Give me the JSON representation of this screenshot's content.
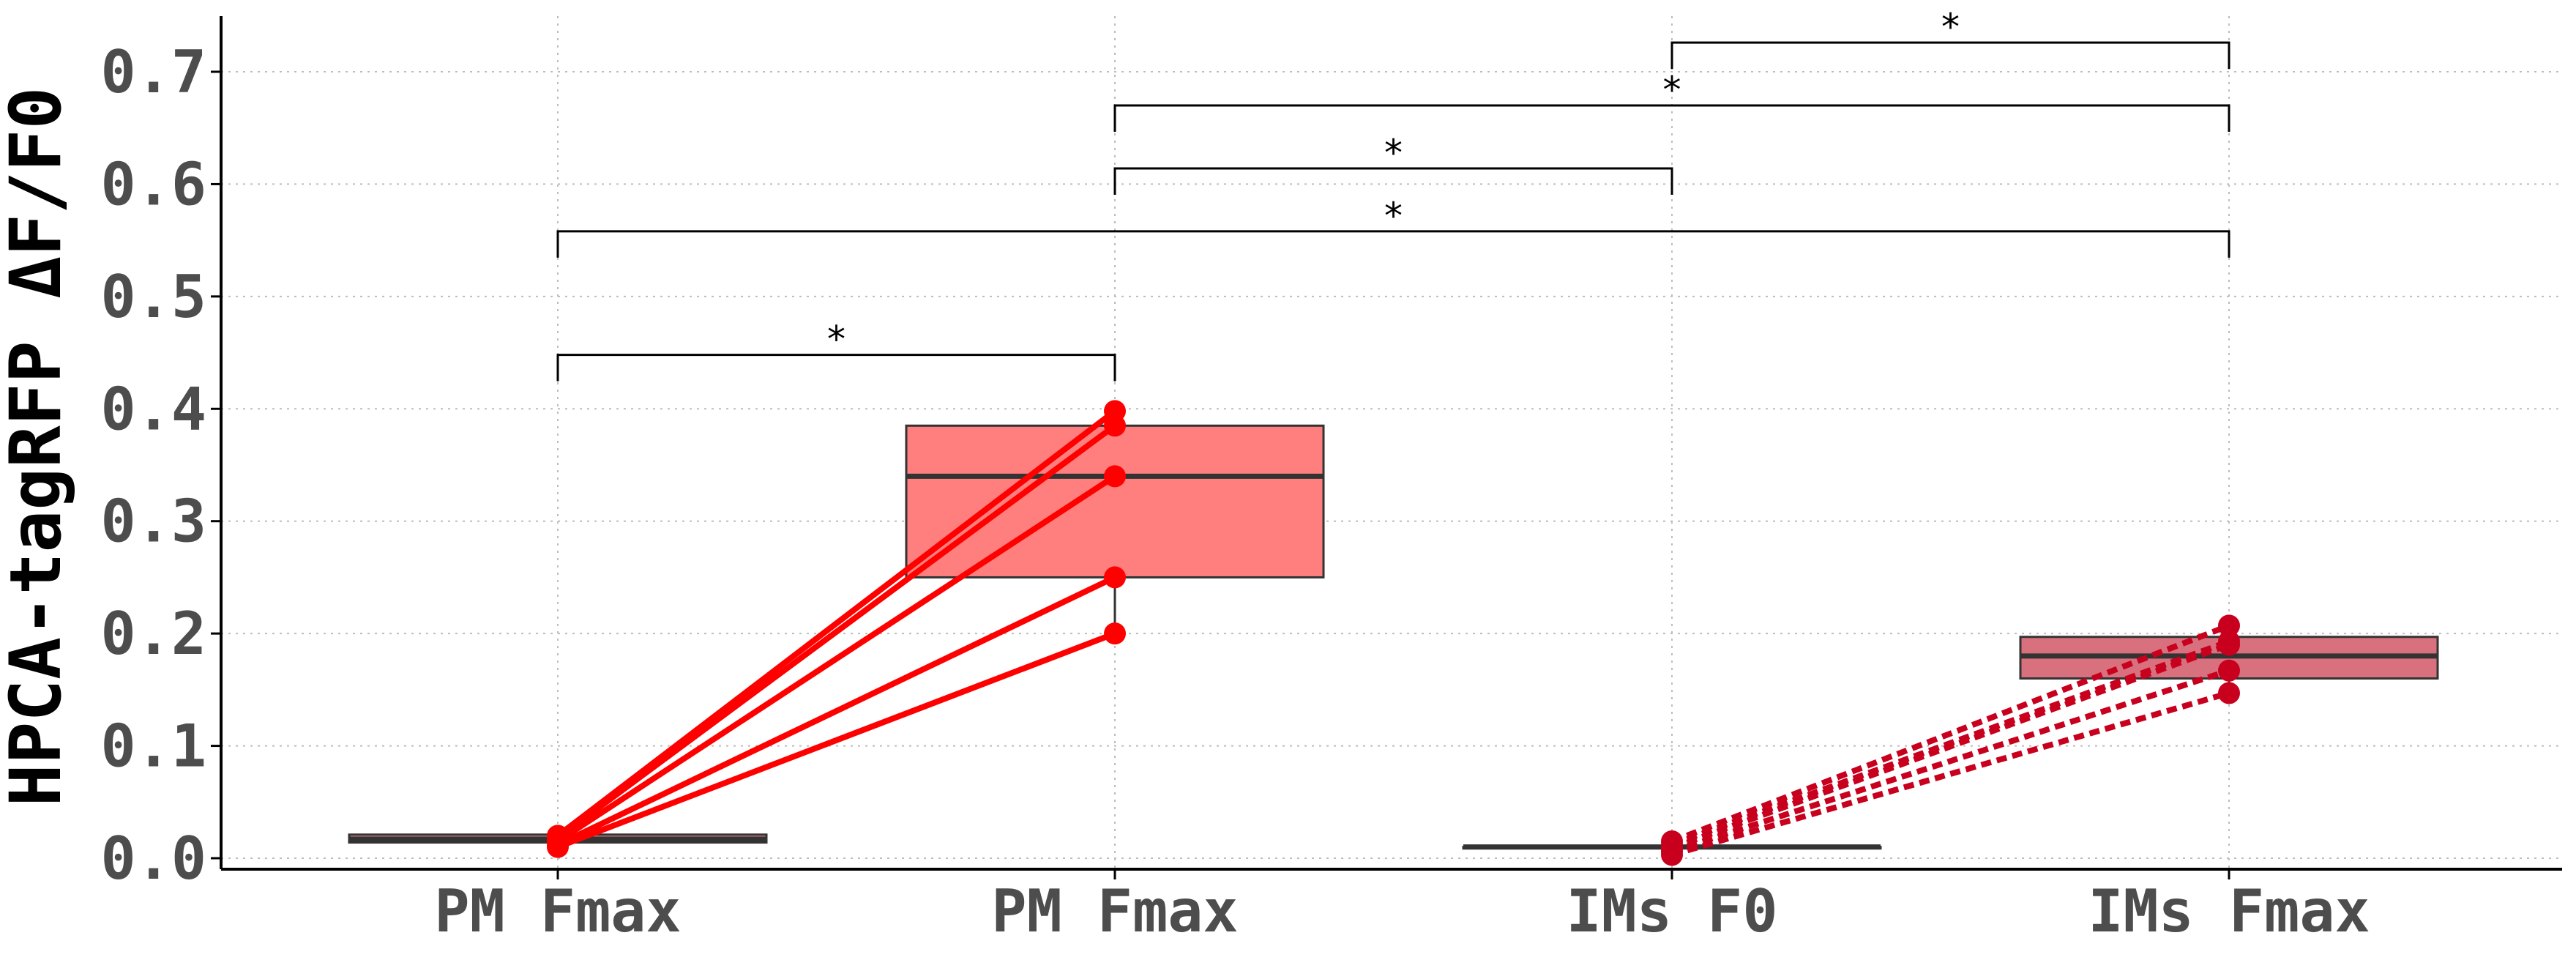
{
  "chart_data": {
    "type": "box",
    "title": "",
    "xlabel": "",
    "ylabel": "HPCA-tagRFP ΔF/F0",
    "categories": [
      "PM Fmax",
      "PM Fmax",
      "IMs F0",
      "IMs Fmax"
    ],
    "ylim": [
      -0.01,
      0.75
    ],
    "yticks": [
      "0.0",
      "0.1",
      "0.2",
      "0.3",
      "0.4",
      "0.5",
      "0.6",
      "0.7"
    ],
    "grid": true,
    "boxes": [
      {
        "category_index": 0,
        "q1": 0.014,
        "median": 0.017,
        "q3": 0.021,
        "whisker_low": 0.014,
        "whisker_high": 0.021,
        "fill": "#f4898b"
      },
      {
        "category_index": 1,
        "q1": 0.25,
        "median": 0.34,
        "q3": 0.385,
        "whisker_low": 0.2,
        "whisker_high": 0.398,
        "fill": "#ff7f7f"
      },
      {
        "category_index": 2,
        "q1": 0.01,
        "median": 0.01,
        "q3": 0.01,
        "whisker_low": 0.01,
        "whisker_high": 0.01,
        "fill": "#d8707e"
      },
      {
        "category_index": 3,
        "q1": 0.16,
        "median": 0.18,
        "q3": 0.197,
        "whisker_low": 0.147,
        "whisker_high": 0.207,
        "fill": "#d8707e"
      }
    ],
    "paired_series": [
      {
        "from_index": 0,
        "to_index": 1,
        "line_style": "solid",
        "color": "#ff0000",
        "from_values": [
          0.02,
          0.018,
          0.015,
          0.012,
          0.01
        ],
        "to_values": [
          0.398,
          0.385,
          0.34,
          0.25,
          0.2
        ]
      },
      {
        "from_index": 2,
        "to_index": 3,
        "line_style": "dashed",
        "color": "#c8001e",
        "from_values": [
          0.015,
          0.012,
          0.009,
          0.006,
          0.003
        ],
        "to_values": [
          0.207,
          0.193,
          0.19,
          0.167,
          0.147
        ]
      }
    ],
    "significance": [
      {
        "from_index": 0,
        "to_index": 1,
        "y": 0.448,
        "label": "*"
      },
      {
        "from_index": 0,
        "to_index": 3,
        "y": 0.558,
        "label": "*"
      },
      {
        "from_index": 1,
        "to_index": 2,
        "y": 0.614,
        "label": "*"
      },
      {
        "from_index": 1,
        "to_index": 3,
        "y": 0.67,
        "label": "*"
      },
      {
        "from_index": 2,
        "to_index": 3,
        "y": 0.726,
        "label": "*"
      }
    ]
  }
}
